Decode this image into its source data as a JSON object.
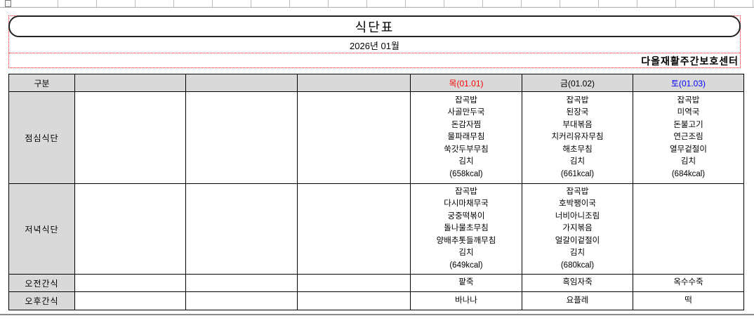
{
  "header": {
    "title": "식단표",
    "month": "2026년 01월",
    "center_name": "다올재활주간보호센터"
  },
  "colors": {
    "header_bg": "#d9d9d9",
    "thursday_text": "#ff0000",
    "friday_text": "#000000",
    "saturday_text": "#0000ff",
    "print_guide": "#ff0000"
  },
  "table": {
    "columns": [
      {
        "label": "구분",
        "color": "#000000"
      },
      {
        "label": "",
        "color": "#000000"
      },
      {
        "label": "",
        "color": "#000000"
      },
      {
        "label": "",
        "color": "#000000"
      },
      {
        "label": "목(01.01)",
        "color": "#ff0000"
      },
      {
        "label": "금(01.02)",
        "color": "#000000"
      },
      {
        "label": "토(01.03)",
        "color": "#0000ff"
      }
    ],
    "rows": [
      {
        "label": "점심식단",
        "cells": [
          [],
          [],
          [],
          [
            "잡곡밥",
            "사골만두국",
            "돈감자찜",
            "물파래무침",
            "쑥갓두부무침",
            "김치",
            "(658kcal)"
          ],
          [
            "잡곡밥",
            "된장국",
            "부대볶음",
            "치커리유자무침",
            "해초무침",
            "김치",
            "(661kcal)"
          ],
          [
            "잡곡밥",
            "미역국",
            "돈불고기",
            "연근조림",
            "열무겉절이",
            "김치",
            "(684kcal)"
          ]
        ]
      },
      {
        "label": "저녁식단",
        "cells": [
          [],
          [],
          [],
          [
            "잡곡밥",
            "다시마채무국",
            "궁중떡볶이",
            "돌나물초무침",
            "양배추톳들깨무침",
            "김치",
            "(649kcal)"
          ],
          [
            "잡곡밥",
            "호박팽이국",
            "너비아니조림",
            "가지볶음",
            "얼갈이겉절이",
            "김치",
            "(680kcal)"
          ],
          []
        ]
      },
      {
        "label": "오전간식",
        "cells": [
          [],
          [],
          [],
          [
            "팥죽"
          ],
          [
            "흑임자죽"
          ],
          [
            "옥수수죽"
          ]
        ]
      },
      {
        "label": "오후간식",
        "cells": [
          [],
          [],
          [],
          [
            "바나나"
          ],
          [
            "요플레"
          ],
          [
            "떡"
          ]
        ]
      }
    ]
  }
}
